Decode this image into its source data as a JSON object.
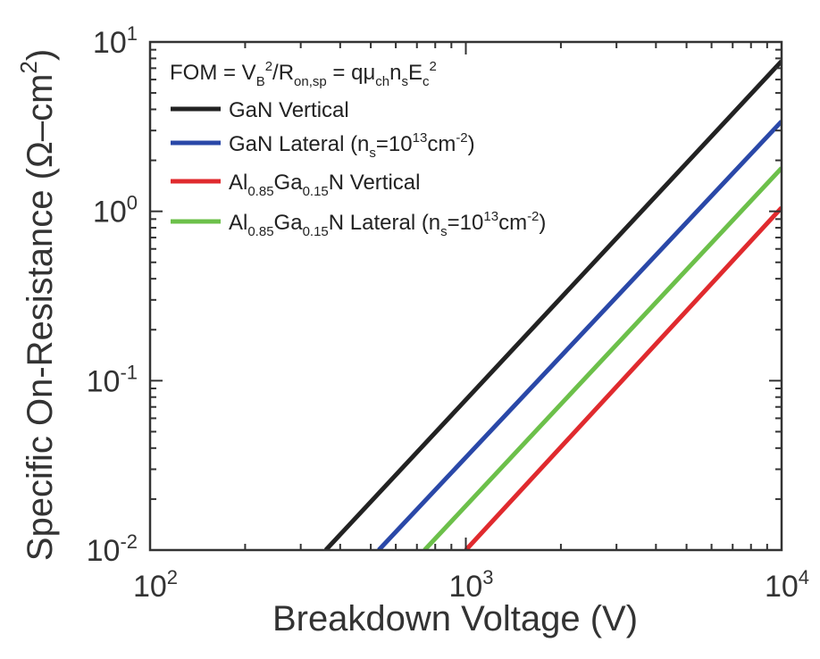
{
  "chart_data": {
    "type": "line",
    "xscale": "log",
    "yscale": "log",
    "xlim": [
      100,
      10000
    ],
    "ylim": [
      0.01,
      10
    ],
    "xlabel": "Breakdown Voltage (V)",
    "ylabel": "Specific On-Resistance (Ω–cm²)",
    "ylabel_parts": {
      "main": "Specific On-Resistance (Ω–cm",
      "sup": "2",
      "end": ")"
    },
    "x_ticks": [
      {
        "base": "10",
        "exp": "2",
        "value": 100
      },
      {
        "base": "10",
        "exp": "3",
        "value": 1000
      },
      {
        "base": "10",
        "exp": "4",
        "value": 10000
      }
    ],
    "y_ticks": [
      {
        "base": "10",
        "exp": "-2",
        "value": 0.01
      },
      {
        "base": "10",
        "exp": "-1",
        "value": 0.1
      },
      {
        "base": "10",
        "exp": "0",
        "value": 1
      },
      {
        "base": "10",
        "exp": "1",
        "value": 10
      }
    ],
    "grid": false,
    "legend_position": "top-left",
    "annotation": "FOM = V_B²/R_on,sp = qμ_ch n_s E_c²",
    "legend_title_parts": [
      {
        "t": "FOM = V"
      },
      {
        "t": "B",
        "sub": true
      },
      {
        "t": "2",
        "sup": true
      },
      {
        "t": "/R"
      },
      {
        "t": "on,sp",
        "sub": true
      },
      {
        "t": " = qμ"
      },
      {
        "t": "ch",
        "sub": true
      },
      {
        "t": "n"
      },
      {
        "t": "s",
        "sub": true
      },
      {
        "t": "E"
      },
      {
        "t": "c",
        "sub": true
      },
      {
        "t": "2",
        "sup": true
      }
    ],
    "series": [
      {
        "name": "GaN Vertical",
        "color": "#222222",
        "x": [
          360,
          10000
        ],
        "y": [
          0.01,
          7.7
        ],
        "label_parts": [
          {
            "t": "GaN Vertical"
          }
        ]
      },
      {
        "name": "GaN Lateral (n_s=10¹³cm⁻²)",
        "color": "#2a48a8",
        "x": [
          530,
          10000
        ],
        "y": [
          0.01,
          3.4
        ],
        "label_parts": [
          {
            "t": "GaN Lateral (n"
          },
          {
            "t": "s",
            "sub": true
          },
          {
            "t": "=10"
          },
          {
            "t": "13",
            "sup": true
          },
          {
            "t": "cm"
          },
          {
            "t": "-2",
            "sup": true
          },
          {
            "t": ")"
          }
        ]
      },
      {
        "name": "Al0.85Ga0.15N Vertical",
        "color": "#e02a2e",
        "x": [
          1000,
          10000
        ],
        "y": [
          0.01,
          1.05
        ],
        "label_parts": [
          {
            "t": "Al"
          },
          {
            "t": "0.85",
            "sub": true
          },
          {
            "t": "Ga"
          },
          {
            "t": "0.15",
            "sub": true
          },
          {
            "t": "N Vertical"
          }
        ]
      },
      {
        "name": "Al0.85Ga0.15N Lateral (n_s=10¹³cm⁻²)",
        "color": "#6cc04a",
        "x": [
          740,
          10000
        ],
        "y": [
          0.01,
          1.8
        ],
        "label_parts": [
          {
            "t": "Al"
          },
          {
            "t": "0.85",
            "sub": true
          },
          {
            "t": "Ga"
          },
          {
            "t": "0.15",
            "sub": true
          },
          {
            "t": "N Lateral (n"
          },
          {
            "t": "s",
            "sub": true
          },
          {
            "t": "=10"
          },
          {
            "t": "13",
            "sup": true
          },
          {
            "t": "cm"
          },
          {
            "t": "-2",
            "sup": true
          },
          {
            "t": ")"
          }
        ]
      }
    ]
  }
}
